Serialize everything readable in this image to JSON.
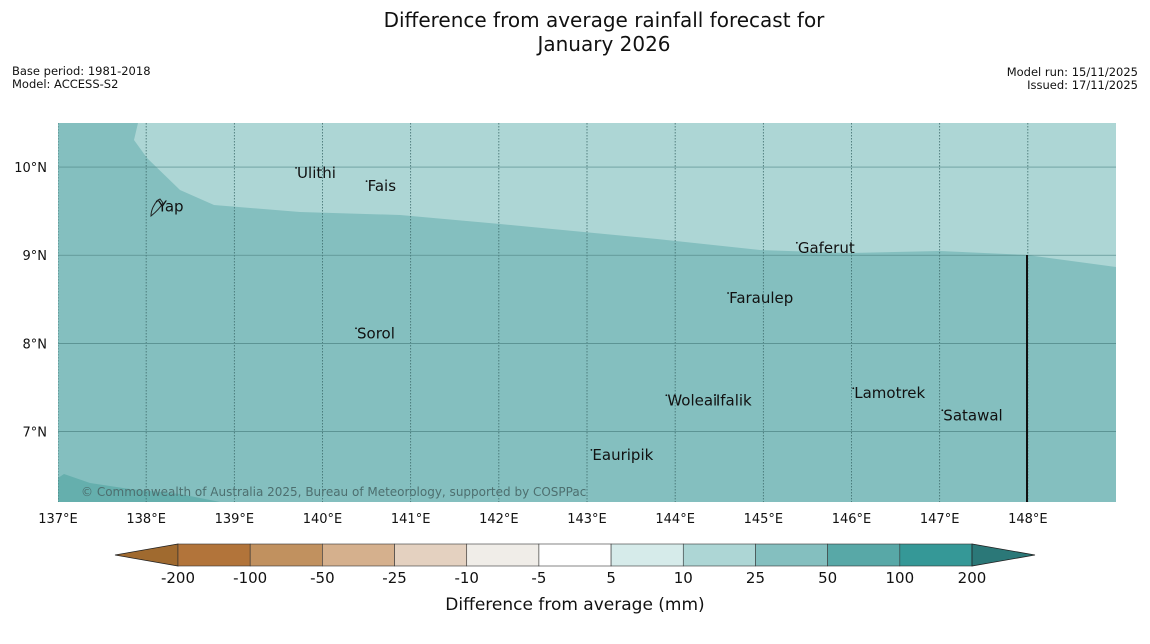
{
  "title": {
    "line1": "Difference from average rainfall forecast for",
    "line2": "January 2026"
  },
  "meta_left": {
    "base_period": "Base period: 1981-2018",
    "model": "Model: ACCESS-S2"
  },
  "meta_right": {
    "model_run": "Model run: 15/11/2025",
    "issued": "Issued: 17/11/2025"
  },
  "map": {
    "lon_range": [
      137,
      149
    ],
    "lat_range": [
      6.2,
      10.5
    ],
    "lon_ticks": [
      137,
      138,
      139,
      140,
      141,
      142,
      143,
      144,
      145,
      146,
      147,
      148
    ],
    "lon_labels": [
      "137°E",
      "138°E",
      "139°E",
      "140°E",
      "141°E",
      "142°E",
      "143°E",
      "144°E",
      "145°E",
      "146°E",
      "147°E",
      "148°E"
    ],
    "lat_ticks": [
      10,
      9,
      8,
      7
    ],
    "lat_labels": [
      "10°N",
      "9°N",
      "8°N",
      "7°N"
    ],
    "places": [
      {
        "name": "Ulithi",
        "lon": 139.7,
        "lat": 9.9
      },
      {
        "name": "Fais",
        "lon": 140.5,
        "lat": 9.75
      },
      {
        "name": "Yap",
        "lon": 138.12,
        "lat": 9.52
      },
      {
        "name": "Gaferut",
        "lon": 145.38,
        "lat": 9.05
      },
      {
        "name": "Faraulep",
        "lon": 144.6,
        "lat": 8.48
      },
      {
        "name": "Sorol",
        "lon": 140.38,
        "lat": 8.08
      },
      {
        "name": "Lamotrek",
        "lon": 146.02,
        "lat": 7.4
      },
      {
        "name": "Woleai",
        "lon": 143.9,
        "lat": 7.32
      },
      {
        "name": "Ifalik",
        "lon": 144.45,
        "lat": 7.32
      },
      {
        "name": "Satawal",
        "lon": 147.03,
        "lat": 7.15
      },
      {
        "name": "Eauripik",
        "lon": 143.05,
        "lat": 6.7
      }
    ],
    "category_colors": {
      "light": "#add6d5",
      "mid": "#84bfbf",
      "dark": "#65afad"
    },
    "copyright": "© Commonwealth of Australia 2025, Bureau of Meteorology, supported by COSPPac"
  },
  "colorbar": {
    "labels": [
      "-200",
      "-100",
      "-50",
      "-25",
      "-10",
      "-5",
      "5",
      "10",
      "25",
      "50",
      "100",
      "200"
    ],
    "colors": [
      "#a06a2f",
      "#b2743a",
      "#c1915f",
      "#d5b08d",
      "#e4d1c0",
      "#f0ede8",
      "#ffffff",
      "#d6ebea",
      "#add6d5",
      "#84bfbf",
      "#58a8a7",
      "#359897",
      "#2b7878"
    ],
    "title": "Difference from average (mm)"
  }
}
